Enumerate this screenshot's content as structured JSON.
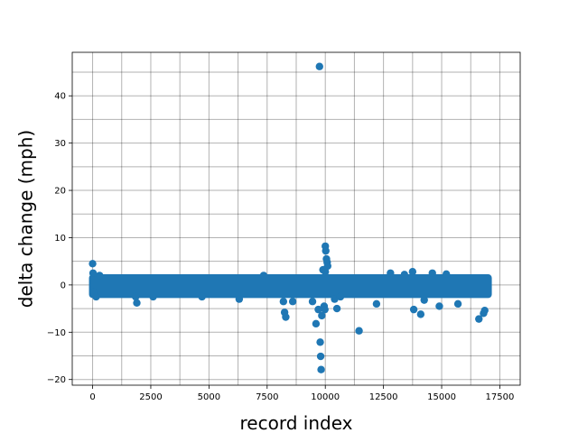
{
  "chart_data": {
    "type": "scatter",
    "title": "",
    "xlabel": "record index",
    "ylabel": "delta change (mph)",
    "xlim": [
      -875,
      18375
    ],
    "ylim": [
      -21.2,
      49.2
    ],
    "xticks": [
      0,
      2500,
      5000,
      7500,
      10000,
      12500,
      15000,
      17500
    ],
    "xtick_labels": [
      "0",
      "2500",
      "5000",
      "7500",
      "10000",
      "12500",
      "15000",
      "17500"
    ],
    "yticks": [
      -20,
      -10,
      0,
      10,
      20,
      30,
      40
    ],
    "ytick_labels": [
      "−20",
      "−10",
      "0",
      "10",
      "20",
      "30",
      "40"
    ],
    "grid": true,
    "grid_minor": true,
    "color": "#1f77b4",
    "band": {
      "x_range": [
        0,
        17000
      ],
      "y_range": [
        -2,
        1.5
      ]
    },
    "points": {
      "x": [
        0,
        20,
        60,
        150,
        300,
        1900,
        1850,
        2600,
        4700,
        6300,
        7350,
        8200,
        8250,
        8300,
        8600,
        9450,
        9600,
        9700,
        9750,
        9780,
        9800,
        9820,
        9850,
        9900,
        9950,
        10000,
        10020,
        10050,
        10080,
        10100,
        10000,
        9980,
        10400,
        10500,
        10650,
        11450,
        12200,
        12800,
        13400,
        13750,
        13800,
        14100,
        14250,
        14600,
        14900,
        15200,
        15700,
        16600,
        16800,
        16850
      ],
      "y": [
        4.5,
        2.5,
        -1.5,
        -2.5,
        2.0,
        -3.8,
        -2.5,
        -2.5,
        -2.5,
        -3.0,
        2.0,
        -3.5,
        -5.8,
        -6.8,
        -3.5,
        -3.5,
        -8.2,
        -5.2,
        46.2,
        -12.1,
        -15.1,
        -17.9,
        -6.5,
        3.2,
        -4.5,
        8.2,
        7.2,
        5.5,
        4.8,
        4.0,
        2.8,
        -5.2,
        -3.0,
        -5.0,
        -2.5,
        -9.7,
        -4.0,
        2.5,
        2.2,
        2.8,
        -5.2,
        -6.2,
        -3.2,
        2.5,
        -4.5,
        2.3,
        -4.0,
        -7.2,
        -6.0,
        -5.4
      ]
    }
  }
}
